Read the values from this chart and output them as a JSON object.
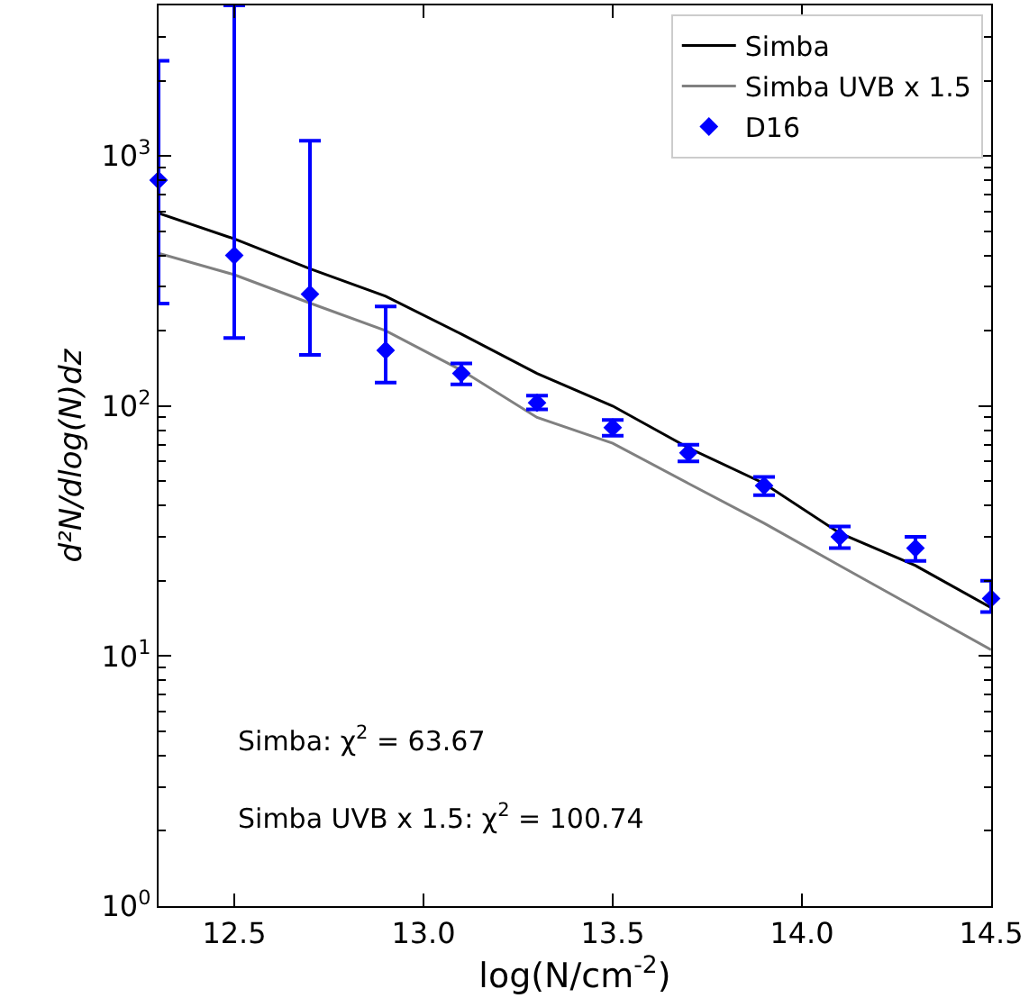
{
  "chart_data": {
    "type": "line",
    "xlabel": "log(N/cm$^{-2}$)",
    "ylabel": "d²N/dlog(N)dz",
    "log": "y",
    "xlim": [
      12.3,
      14.5
    ],
    "ylim": [
      1,
      4000
    ],
    "xticks": [
      {
        "value": 12.5,
        "label": "12.5"
      },
      {
        "value": 13,
        "label": "13.0"
      },
      {
        "value": 13.5,
        "label": "13.5"
      },
      {
        "value": 14,
        "label": "14.0"
      },
      {
        "value": 14.5,
        "label": "14.5"
      }
    ],
    "yticks": [
      {
        "value": 1,
        "label": "10$^{0}$"
      },
      {
        "value": 10,
        "label": "10$^{1}$"
      },
      {
        "value": 100,
        "label": "10$^{2}$"
      },
      {
        "value": 1000,
        "label": "10$^{3}$"
      }
    ],
    "x": [
      12.3,
      12.5,
      12.7,
      12.9,
      13.1,
      13.3,
      13.5,
      13.7,
      13.9,
      14.1,
      14.3,
      14.5
    ],
    "series": [
      {
        "name": "Simba",
        "color": "#000000",
        "values": [
          590,
          466,
          354,
          275,
          194,
          135,
          100,
          68,
          49,
          31,
          23,
          15.6
        ]
      },
      {
        "name": "Simba UVB x 1.5",
        "color": "#808080",
        "values": [
          408,
          335,
          258,
          200,
          139,
          90,
          71,
          49,
          34,
          23,
          15.6,
          10.6
        ]
      },
      {
        "name": "D16",
        "type": "scatter",
        "marker": "diamond",
        "color": "#0000ff",
        "values": [
          800,
          400,
          280,
          167,
          135,
          103,
          82,
          65,
          48,
          30,
          27,
          17
        ],
        "errors": [
          [
            257,
            2400
          ],
          [
            187,
            4000
          ],
          [
            160,
            1150
          ],
          [
            124,
            250
          ],
          [
            122,
            148
          ],
          [
            97,
            110
          ],
          [
            76,
            88
          ],
          [
            60,
            70
          ],
          [
            44,
            52
          ],
          [
            27,
            33
          ],
          [
            24,
            30
          ],
          [
            15,
            20
          ]
        ]
      }
    ],
    "legend": "top right",
    "annotations": [
      "Simba: χ$^{2}$ = 63.67",
      "Simba UVB x 1.5: χ$^{2}$ = 100.74"
    ]
  }
}
